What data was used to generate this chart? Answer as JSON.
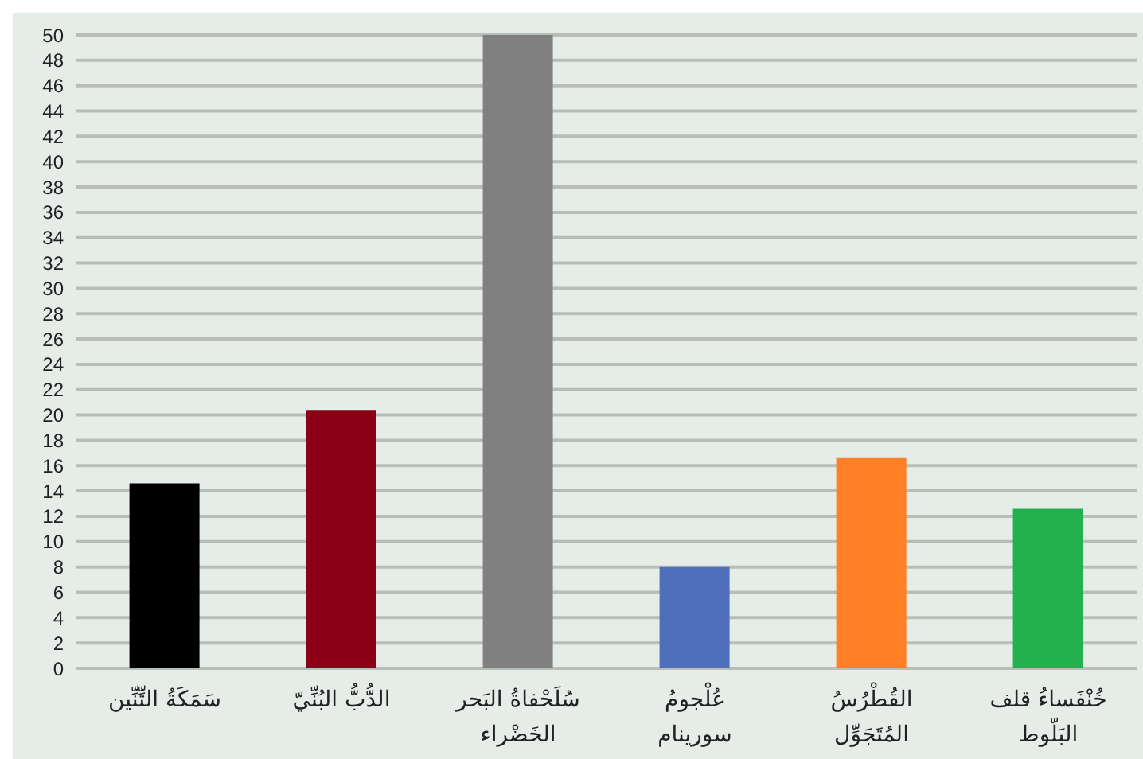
{
  "chart_data": {
    "type": "bar",
    "categories": [
      "سَمَكَةُ التِّنِّين",
      "الدُّبُّ البُنِّيّ",
      "سُلَحْفاةُ البَحر الخَضْراء",
      "عُلْجومُ سورينام",
      "القُطْرُسُ المُتَجَوِّل",
      "خُنْفَساءُ قلف البَلّوط"
    ],
    "values": [
      14.6,
      20.4,
      50,
      8,
      16.6,
      12.6
    ],
    "colors": [
      "#000000",
      "#8b0016",
      "#808080",
      "#4f6fba",
      "#ff7f27",
      "#22b14c"
    ],
    "ylim": [
      0,
      50
    ],
    "yticks": [
      0,
      2,
      4,
      6,
      8,
      10,
      12,
      14,
      16,
      18,
      20,
      22,
      24,
      26,
      28,
      30,
      32,
      34,
      36,
      38,
      40,
      42,
      44,
      46,
      48,
      50
    ],
    "grid": "y",
    "legend": false
  }
}
